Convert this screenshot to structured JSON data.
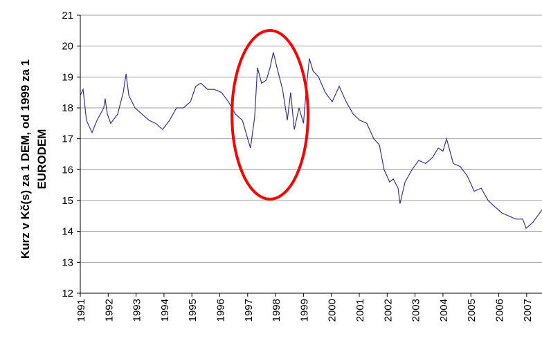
{
  "chart_data": {
    "type": "line",
    "ylabel": [
      "Kurz v Kč(s) za 1 DEM, od 1999 za 1",
      "EURODEM"
    ],
    "x": [
      1991.0,
      1991.1,
      1991.22,
      1991.42,
      1991.6,
      1991.84,
      1991.89,
      1991.97,
      1992.09,
      1992.34,
      1992.54,
      1992.64,
      1992.74,
      1992.96,
      1993.21,
      1993.46,
      1993.7,
      1993.95,
      1994.2,
      1994.45,
      1994.7,
      1994.95,
      1995.14,
      1995.32,
      1995.56,
      1995.81,
      1996.06,
      1996.31,
      1996.56,
      1996.81,
      1997.0,
      1997.1,
      1997.25,
      1997.35,
      1997.5,
      1997.67,
      1997.8,
      1997.92,
      1998.05,
      1998.25,
      1998.42,
      1998.54,
      1998.67,
      1998.84,
      1999.0,
      1999.09,
      1999.21,
      1999.34,
      1999.54,
      1999.78,
      2000.03,
      2000.28,
      2000.53,
      2000.78,
      2001.02,
      2001.27,
      2001.52,
      2001.72,
      2001.89,
      2002.09,
      2002.22,
      2002.39,
      2002.46,
      2002.64,
      2002.89,
      2003.13,
      2003.38,
      2003.63,
      2003.83,
      2004.0,
      2004.13,
      2004.25,
      2004.37,
      2004.62,
      2004.87,
      2005.12,
      2005.37,
      2005.62,
      2005.86,
      2006.11,
      2006.36,
      2006.61,
      2006.86,
      2006.98,
      2007.23,
      2007.55
    ],
    "series": [
      {
        "color": "#333399",
        "values": [
          18.4,
          18.6,
          17.6,
          17.2,
          17.6,
          18.0,
          18.3,
          17.8,
          17.5,
          17.8,
          18.5,
          19.1,
          18.4,
          18.0,
          17.8,
          17.6,
          17.5,
          17.3,
          17.6,
          18.0,
          18.0,
          18.2,
          18.7,
          18.8,
          18.6,
          18.6,
          18.5,
          18.2,
          17.8,
          17.6,
          17.0,
          16.7,
          17.7,
          19.3,
          18.8,
          18.9,
          19.3,
          19.8,
          19.3,
          18.6,
          17.6,
          18.5,
          17.3,
          18.0,
          17.5,
          18.5,
          19.6,
          19.2,
          19.0,
          18.5,
          18.2,
          18.7,
          18.2,
          17.8,
          17.6,
          17.5,
          17.0,
          16.8,
          16.0,
          15.6,
          15.7,
          15.4,
          14.9,
          15.6,
          16.0,
          16.3,
          16.2,
          16.4,
          16.7,
          16.6,
          17.0,
          16.6,
          16.2,
          16.1,
          15.8,
          15.3,
          15.4,
          15.0,
          14.8,
          14.6,
          14.5,
          14.4,
          14.4,
          14.1,
          14.3,
          14.7
        ]
      }
    ],
    "xlim": [
      1991,
      2007.55
    ],
    "xticks": [
      1991,
      1992,
      1993,
      1994,
      1995,
      1996,
      1997,
      1998,
      1999,
      2000,
      2001,
      2002,
      2003,
      2004,
      2005,
      2006,
      2007
    ],
    "ylim": [
      12,
      21
    ],
    "yticks": [
      12,
      13,
      14,
      15,
      16,
      17,
      18,
      19,
      20,
      21
    ],
    "grid": true
  }
}
